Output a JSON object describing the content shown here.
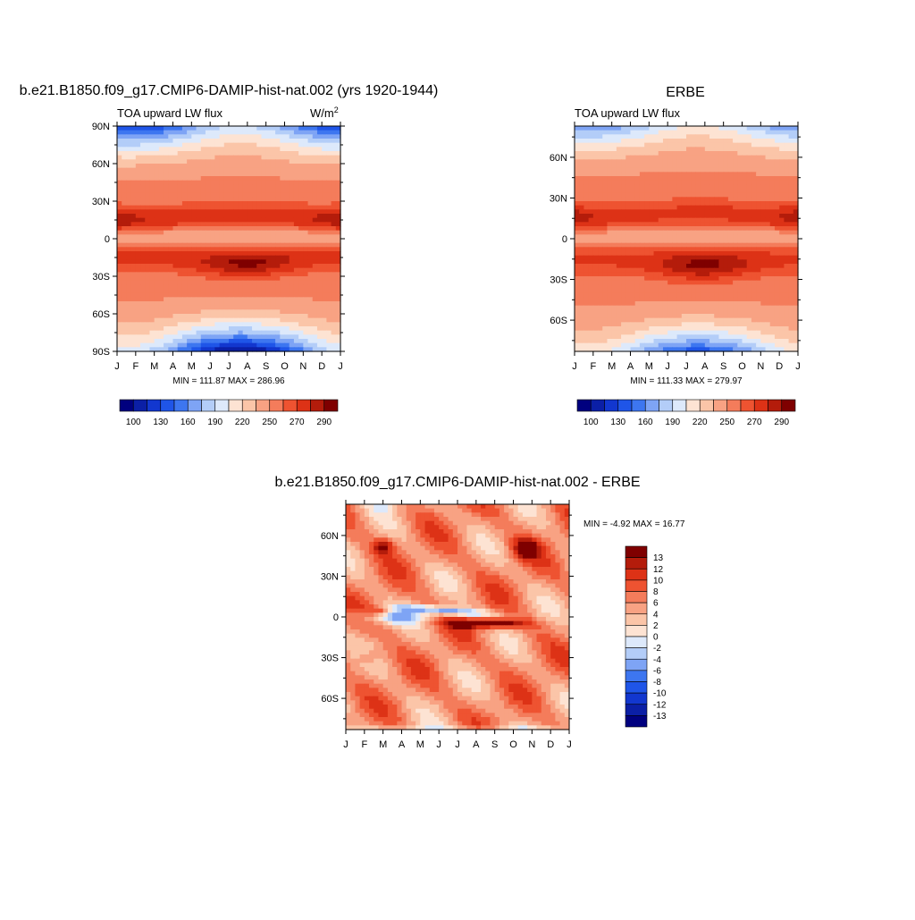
{
  "panels": [
    {
      "id": "model",
      "title": "b.e21.B1850.f09_g17.CMIP6-DAMIP-hist-nat.002 (yrs 1920-1944)",
      "subtitle": "TOA upward LW flux",
      "units": "W/m",
      "units_sup": "2",
      "minmax": "MIN = 111.87 MAX = 286.96"
    },
    {
      "id": "obs",
      "title": "ERBE",
      "subtitle": "TOA upward LW flux",
      "units": "",
      "units_sup": "",
      "minmax": "MIN = 111.33 MAX = 279.97"
    },
    {
      "id": "diff",
      "title": "b.e21.B1850.f09_g17.CMIP6-DAMIP-hist-nat.002 - ERBE",
      "subtitle": "",
      "units": "",
      "units_sup": "",
      "minmax": "MIN =  -4.92 MAX =  16.77"
    }
  ],
  "colorbar_abs": {
    "labels": [
      "100",
      "130",
      "160",
      "190",
      "220",
      "250",
      "270",
      "290"
    ],
    "colors": [
      "#00007f",
      "#0b1fa6",
      "#1237cf",
      "#1f55e8",
      "#3d76f0",
      "#7ea4f5",
      "#b3cdf8",
      "#dde9fb",
      "#fde3d3",
      "#fbc5a8",
      "#f8a283",
      "#f47c5b",
      "#ee5331",
      "#dd3216",
      "#b41c0b",
      "#7f0000"
    ]
  },
  "colorbar_diff": {
    "labels": [
      "13",
      "12",
      "10",
      "8",
      "6",
      "4",
      "2",
      "0",
      "-2",
      "-4",
      "-6",
      "-8",
      "-10",
      "-12",
      "-13"
    ],
    "colors": [
      "#7f0000",
      "#b41c0b",
      "#dd3216",
      "#ee5331",
      "#f47c5b",
      "#f8a283",
      "#fbc5a8",
      "#fde3d3",
      "#dde9fb",
      "#b3cdf8",
      "#7ea4f5",
      "#3d76f0",
      "#1f55e8",
      "#1237cf",
      "#0b1fa6",
      "#00007f"
    ]
  },
  "chart_data": [
    {
      "type": "heatmap",
      "title": "b.e21.B1850.f09_g17.CMIP6-DAMIP-hist-nat.002 (yrs 1920-1944)",
      "subtitle": "TOA upward LW flux",
      "units": "W/m2",
      "x": [
        "J",
        "F",
        "M",
        "A",
        "M",
        "J",
        "J",
        "A",
        "S",
        "O",
        "N",
        "D",
        "J"
      ],
      "y_ticks": [
        "90N",
        "60N",
        "30N",
        "0",
        "30S",
        "60S",
        "90S"
      ],
      "ylim": [
        -90,
        90
      ],
      "min": 111.87,
      "max": 286.96,
      "levels": [
        100,
        130,
        160,
        190,
        220,
        250,
        270,
        290
      ]
    },
    {
      "type": "heatmap",
      "title": "ERBE",
      "subtitle": "TOA upward LW flux",
      "x": [
        "J",
        "F",
        "M",
        "A",
        "M",
        "J",
        "J",
        "A",
        "S",
        "O",
        "N",
        "D",
        "J"
      ],
      "y_ticks": [
        "60N",
        "30N",
        "0",
        "30S",
        "60S"
      ],
      "min": 111.33,
      "max": 279.97,
      "levels": [
        100,
        130,
        160,
        190,
        220,
        250,
        270,
        290
      ]
    },
    {
      "type": "heatmap",
      "title": "b.e21.B1850.f09_g17.CMIP6-DAMIP-hist-nat.002 - ERBE",
      "x": [
        "J",
        "F",
        "M",
        "A",
        "M",
        "J",
        "J",
        "A",
        "S",
        "O",
        "N",
        "D",
        "J"
      ],
      "y_ticks": [
        "60N",
        "30N",
        "0",
        "30S",
        "60S"
      ],
      "min": -4.92,
      "max": 16.77,
      "levels": [
        -13,
        -12,
        -10,
        -8,
        -6,
        -4,
        -2,
        0,
        2,
        4,
        6,
        8,
        10,
        12,
        13
      ]
    }
  ]
}
